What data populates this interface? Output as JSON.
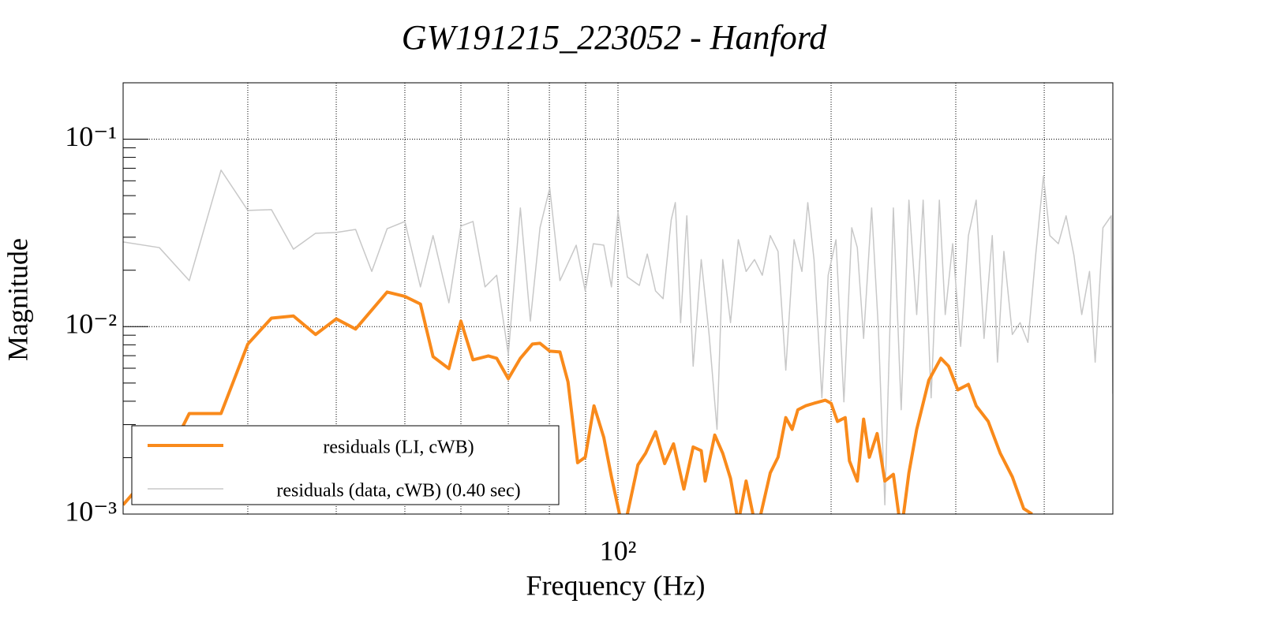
{
  "chart_data": {
    "type": "line",
    "title": "GW191215_223052 - Hanford",
    "xlabel": "Frequency (Hz)",
    "ylabel": "Magnitude",
    "xlog": true,
    "ylog": true,
    "grid": true,
    "legend": "bottom-left",
    "xlim": [
      20,
      500
    ],
    "ylim": [
      0.001,
      0.2
    ],
    "xticks": [
      {
        "value": 100,
        "label": "10²"
      }
    ],
    "xminor": [
      30,
      40,
      50,
      60,
      70,
      80,
      90,
      200,
      300,
      400
    ],
    "yticks": [
      {
        "value": 0.001,
        "label": "10⁻³"
      },
      {
        "value": 0.01,
        "label": "10⁻²"
      },
      {
        "value": 0.1,
        "label": "10⁻¹"
      }
    ],
    "yminor": [
      0.002,
      0.003,
      0.004,
      0.005,
      0.006,
      0.007,
      0.008,
      0.009,
      0.02,
      0.03,
      0.04,
      0.05,
      0.06,
      0.07,
      0.08,
      0.09,
      0.2
    ],
    "series": [
      {
        "name": "residuals (LI, cWB)",
        "color": "#f98a1b",
        "width": 4,
        "x": [
          20,
          23.4,
          24.8,
          27.5,
          30,
          32.4,
          34.8,
          37.4,
          40,
          42.6,
          47.2,
          50,
          52.6,
          54.8,
          57.7,
          60,
          62.4,
          65.6,
          67.4,
          70,
          72.8,
          75.7,
          77.6,
          80.1,
          82.8,
          85,
          87.7,
          89.9,
          92.5,
          95.5,
          97.9,
          101.8,
          106.7,
          109.4,
          113,
          116.4,
          119.8,
          123.9,
          127.7,
          131.1,
          132.8,
          137,
          140.6,
          144.2,
          147.9,
          151.7,
          157,
          164.1,
          168.3,
          172.6,
          176.2,
          179.5,
          184.1,
          189.2,
          196.3,
          200,
          204.2,
          209.4,
          212.3,
          217.8,
          222.3,
          226.5,
          232.3,
          238.2,
          244.9,
          251.2,
          257.6,
          264.2,
          274.8,
          285.8,
          293.1,
          302,
          312.6,
          320.6,
          333.4,
          346.7,
          360.6,
          374.1,
          384.6
        ],
        "values": [
          0.00112,
          0.00222,
          0.00344,
          0.00344,
          0.00807,
          0.0111,
          0.0114,
          0.00908,
          0.011,
          0.00971,
          0.0153,
          0.0145,
          0.0132,
          0.00692,
          0.00597,
          0.0107,
          0.00665,
          0.00698,
          0.00678,
          0.00527,
          0.00678,
          0.00807,
          0.00815,
          0.0074,
          0.00733,
          0.00507,
          0.00188,
          0.00201,
          0.00378,
          0.00256,
          0.00158,
          0.0008,
          0.00183,
          0.00211,
          0.00275,
          0.00186,
          0.00237,
          0.00136,
          0.00228,
          0.00218,
          0.0015,
          0.00264,
          0.00211,
          0.00155,
          0.0009,
          0.0015,
          0.0008,
          0.00166,
          0.00201,
          0.00327,
          0.00283,
          0.0036,
          0.00378,
          0.0039,
          0.00405,
          0.0039,
          0.00312,
          0.00327,
          0.00192,
          0.0015,
          0.00321,
          0.00201,
          0.00269,
          0.0015,
          0.00163,
          0.0008,
          0.00166,
          0.00283,
          0.00517,
          0.00678,
          0.00615,
          0.0046,
          0.00492,
          0.00378,
          0.00312,
          0.00211,
          0.00158,
          0.00107,
          0.001
        ]
      },
      {
        "name": "residuals (data, cWB) (0.40 sec)",
        "color": "#c8c8c8",
        "width": 1.5,
        "x": [
          20,
          22.5,
          24.8,
          27.5,
          30,
          32.4,
          34.8,
          37.4,
          40,
          42.6,
          44.9,
          47.2,
          50,
          52.6,
          54.8,
          57.7,
          60,
          62.4,
          64.9,
          67.4,
          70,
          72.8,
          75.2,
          77.6,
          80.1,
          82.8,
          85,
          87.3,
          89.9,
          92.3,
          95.5,
          97.9,
          100,
          103.1,
          107.2,
          110,
          113,
          115.8,
          118.9,
          120.5,
          122.6,
          125.1,
          127.7,
          131.1,
          134.5,
          138,
          140.6,
          144.2,
          147.9,
          151.7,
          155.9,
          159.9,
          164.1,
          168.3,
          172.6,
          177.3,
          181.9,
          185.4,
          189.2,
          194.1,
          198.1,
          203.2,
          208.5,
          213.9,
          217.8,
          222.3,
          228.2,
          233.3,
          238.2,
          244.9,
          251.2,
          257.6,
          264.2,
          269.8,
          276.9,
          284.4,
          289.9,
          297,
          304.8,
          312.6,
          320.6,
          328.9,
          337.8,
          343.6,
          350.8,
          360.6,
          369.8,
          379.3,
          389,
          399,
          407.4,
          418.8,
          429.5,
          440.6,
          451.9,
          463.5,
          472.1,
          484.2,
          497.3,
          500
        ],
        "values": [
          0.0283,
          0.0264,
          0.0176,
          0.0684,
          0.0417,
          0.0421,
          0.0259,
          0.0315,
          0.0318,
          0.033,
          0.0197,
          0.0333,
          0.0364,
          0.0163,
          0.0306,
          0.0134,
          0.0344,
          0.0364,
          0.0163,
          0.0188,
          0.00711,
          0.043,
          0.0107,
          0.0337,
          0.0548,
          0.0176,
          0.0218,
          0.0272,
          0.0155,
          0.0277,
          0.0272,
          0.0163,
          0.0409,
          0.0184,
          0.0166,
          0.0244,
          0.0155,
          0.0141,
          0.0371,
          0.0459,
          0.0105,
          0.039,
          0.00615,
          0.0228,
          0.00908,
          0.00283,
          0.0228,
          0.0105,
          0.0291,
          0.0197,
          0.0228,
          0.0188,
          0.0306,
          0.0252,
          0.00586,
          0.0291,
          0.0197,
          0.0459,
          0.0228,
          0.00417,
          0.0188,
          0.0291,
          0.00397,
          0.0337,
          0.0264,
          0.00865,
          0.043,
          0.00953,
          0.00112,
          0.043,
          0.0036,
          0.0473,
          0.0116,
          0.0473,
          0.00417,
          0.0473,
          0.0116,
          0.0277,
          0.00785,
          0.0306,
          0.0473,
          0.00865,
          0.0306,
          0.00646,
          0.0252,
          0.00908,
          0.0105,
          0.00824,
          0.024,
          0.0634,
          0.0306,
          0.0277,
          0.039,
          0.024,
          0.0116,
          0.0197,
          0.00646,
          0.0337,
          0.039,
          0.00438
        ]
      }
    ]
  }
}
